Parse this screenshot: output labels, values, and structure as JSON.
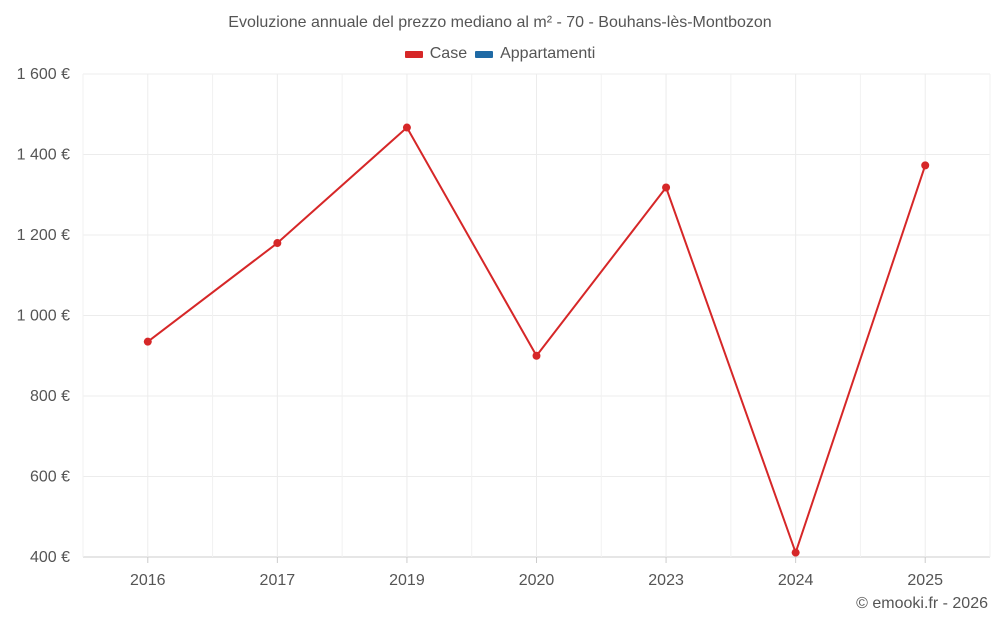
{
  "chart_data": {
    "type": "line",
    "title": "Evoluzione annuale del prezzo mediano al m² - 70 - Bouhans-lès-Montbozon",
    "categories": [
      "2016",
      "2017",
      "2019",
      "2020",
      "2023",
      "2024",
      "2025"
    ],
    "series": [
      {
        "name": "Case",
        "color": "#d62728",
        "values": [
          935,
          1180,
          1467,
          900,
          1318,
          411,
          1373
        ]
      },
      {
        "name": "Appartamenti",
        "color": "#1f6aa5",
        "values": [
          null,
          null,
          null,
          null,
          null,
          null,
          null
        ]
      }
    ],
    "yticks": [
      "1 600 €",
      "1 400 €",
      "1 200 €",
      "1 000 €",
      "800 €",
      "600 €",
      "400 €"
    ],
    "ylim": [
      400,
      1600
    ],
    "ytick_step": 200,
    "xlabel": "",
    "ylabel": "",
    "grid": true,
    "legend_position": "top-center"
  },
  "footer": {
    "copyright": "© emooki.fr - 2026"
  }
}
